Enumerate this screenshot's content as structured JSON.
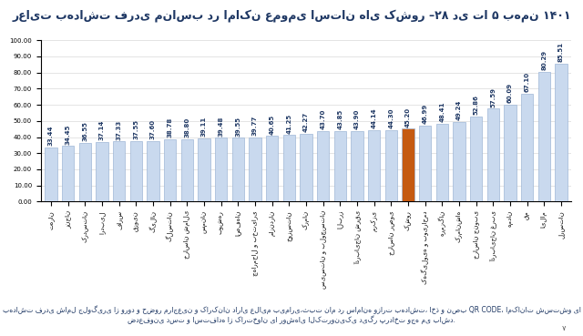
{
  "chart_data": {
    "type": "bar",
    "title": "رعایت بهداشت فردی مناسب در اماکن عمومی استان های کشور –۲۸ دی تا ۵ بهمن ۱۴۰۱",
    "categories": [
      "تهران",
      "زنجان",
      "کردستان",
      "اردبیل",
      "فارس",
      "قزوین",
      "گیلان",
      "گلستان",
      "خراسان شمالی",
      "سمنان",
      "بوشهر",
      "اصفهان",
      "چهارمحال و بختیاری",
      "مازندران",
      "خوزستان",
      "کرمان",
      "سیستان و بلوچستان",
      "البرز",
      "آذربایجان شرقی",
      "مرکزی",
      "خراسان رضوی",
      "کشور",
      "کهگیلویه و بویراحمد",
      "هرمزگان",
      "کرمانشاه",
      "خراسان جنوبی",
      "آذربایجان غربی",
      "همدان",
      "قم",
      "ایلام",
      "لرستان"
    ],
    "values": [
      33.44,
      34.45,
      36.55,
      37.14,
      37.33,
      37.55,
      37.6,
      38.78,
      38.8,
      39.11,
      39.48,
      39.55,
      39.77,
      40.65,
      41.25,
      42.27,
      43.7,
      43.85,
      43.9,
      44.14,
      44.3,
      45.2,
      46.99,
      48.41,
      49.24,
      52.86,
      57.59,
      60.09,
      67.1,
      80.29,
      85.51
    ],
    "value_labels": [
      "33.44",
      "34.45",
      "36.55",
      "37.14",
      "37.33",
      "37.55",
      "37.60",
      "38.78",
      "38.80",
      "39.11",
      "39.48",
      "39.55",
      "39.77",
      "40.65",
      "41.25",
      "42.27",
      "43.70",
      "43.85",
      "43.90",
      "44.14",
      "44.30",
      "45.20",
      "46.99",
      "48.41",
      "49.24",
      "52.86",
      "57.59",
      "60.09",
      "67.10",
      "80.29",
      "85.51"
    ],
    "colors": [
      "#c9d9ee",
      "#c9d9ee",
      "#c9d9ee",
      "#c9d9ee",
      "#c9d9ee",
      "#c9d9ee",
      "#c9d9ee",
      "#c9d9ee",
      "#c9d9ee",
      "#c9d9ee",
      "#c9d9ee",
      "#c9d9ee",
      "#c9d9ee",
      "#c9d9ee",
      "#c9d9ee",
      "#c9d9ee",
      "#c9d9ee",
      "#c9d9ee",
      "#c9d9ee",
      "#c9d9ee",
      "#c9d9ee",
      "#c55a11",
      "#c9d9ee",
      "#c9d9ee",
      "#c9d9ee",
      "#c9d9ee",
      "#c9d9ee",
      "#c9d9ee",
      "#c9d9ee",
      "#c9d9ee",
      "#c9d9ee"
    ],
    "ylim": [
      0,
      100
    ],
    "yticks": [
      {
        "value": 0,
        "label": "0.00"
      },
      {
        "value": 10,
        "label": "10.00"
      },
      {
        "value": 20,
        "label": "20.00"
      },
      {
        "value": 30,
        "label": "30.00"
      },
      {
        "value": 40,
        "label": "40.00"
      },
      {
        "value": 50,
        "label": "50.00"
      },
      {
        "value": 60,
        "label": "60.00"
      },
      {
        "value": 70,
        "label": "70.00"
      },
      {
        "value": 80,
        "label": "80.00"
      },
      {
        "value": 90,
        "label": "90.00"
      },
      {
        "value": 100,
        "label": "100.00"
      }
    ],
    "grid": true,
    "data_labels": true,
    "annotations": [
      "بهداشت فردی شامل جلوگیری از ورود و حضور مراجعین و کارکنان دارای علایم بیماری،ثبت نام در سامانه وزارت بهداشت، اخذ و نصب QR CODE، امکانات شستشو یا ضدعفونی دست و استفاده از کارتخوان یا روشهای الکترونیکی دیگر پرداخت وجه می باشد.",
      "۷"
    ]
  }
}
